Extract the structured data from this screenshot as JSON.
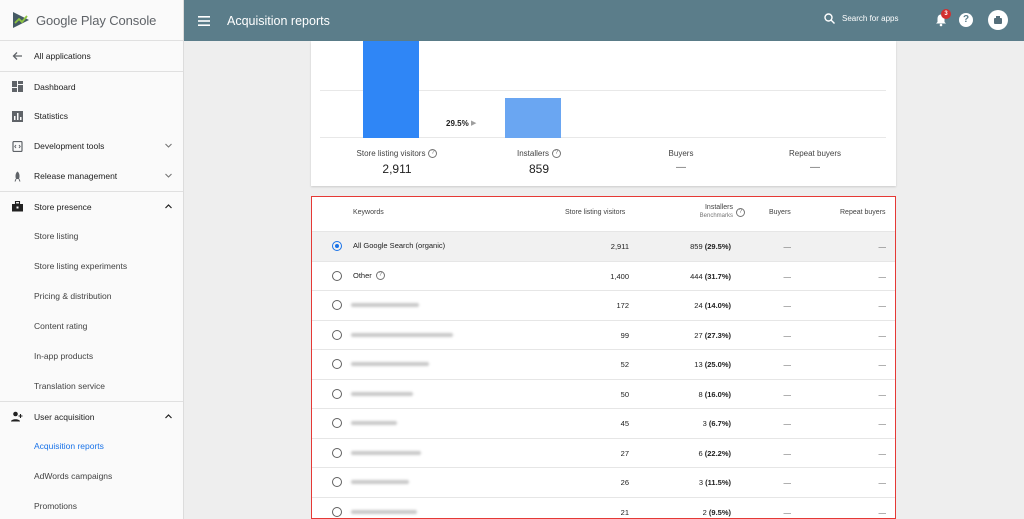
{
  "app": {
    "logo_text_a": "Google Play",
    "logo_text_b": "Console"
  },
  "topbar": {
    "title": "Acquisition reports",
    "search_label": "Search for apps",
    "notif_count": "3",
    "help": "?",
    "color": "#5b7d8a"
  },
  "sidebar": {
    "items": [
      {
        "label": "All applications",
        "icon": "arrow-left-icon"
      },
      {
        "label": "Dashboard",
        "icon": "dashboard-icon"
      },
      {
        "label": "Statistics",
        "icon": "bar-chart-icon"
      },
      {
        "label": "Development tools",
        "icon": "code-icon"
      },
      {
        "label": "Release management",
        "icon": "rocket-icon"
      },
      {
        "label": "Store presence",
        "icon": "briefcase-icon"
      },
      {
        "label": "Store listing"
      },
      {
        "label": "Store listing experiments"
      },
      {
        "label": "Pricing & distribution"
      },
      {
        "label": "Content rating"
      },
      {
        "label": "In-app products"
      },
      {
        "label": "Translation service"
      },
      {
        "label": "User acquisition",
        "icon": "person-add-icon"
      },
      {
        "label": "Acquisition reports"
      },
      {
        "label": "AdWords campaigns"
      },
      {
        "label": "Promotions"
      }
    ],
    "active_color": "#1a73e8"
  },
  "funnel": {
    "conversion": "29.5%",
    "stats": [
      {
        "label": "Store listing visitors",
        "value": "2,911"
      },
      {
        "label": "Installers",
        "value": "859"
      },
      {
        "label": "Buyers",
        "value": "—"
      },
      {
        "label": "Repeat buyers",
        "value": "—"
      }
    ],
    "bar_colors": [
      "#2f86f6",
      "#6aa6f2"
    ]
  },
  "chart_data": {
    "type": "bar",
    "categories": [
      "Store listing visitors",
      "Installers",
      "Buyers",
      "Repeat buyers"
    ],
    "values": [
      2911,
      859,
      0,
      0
    ],
    "annotations": [
      "29.5%"
    ]
  },
  "table": {
    "headers": {
      "keywords": "Keywords",
      "visitors": "Store listing visitors",
      "installers": "Installers",
      "benchmarks": "Benchmarks",
      "buyers": "Buyers",
      "repeat": "Repeat buyers"
    },
    "rows": [
      {
        "keyword": "All Google Search (organic)",
        "visitors": "2,911",
        "installs": "859",
        "pct": "(29.5%)",
        "buyers": "—",
        "repeat": "—",
        "selected": true
      },
      {
        "keyword": "Other",
        "visitors": "1,400",
        "installs": "444",
        "pct": "(31.7%)",
        "buyers": "—",
        "repeat": "—",
        "has_help": true
      },
      {
        "keyword": "",
        "visitors": "172",
        "installs": "24",
        "pct": "(14.0%)",
        "buyers": "—",
        "repeat": "—"
      },
      {
        "keyword": "",
        "visitors": "99",
        "installs": "27",
        "pct": "(27.3%)",
        "buyers": "—",
        "repeat": "—"
      },
      {
        "keyword": "",
        "visitors": "52",
        "installs": "13",
        "pct": "(25.0%)",
        "buyers": "—",
        "repeat": "—"
      },
      {
        "keyword": "",
        "visitors": "50",
        "installs": "8",
        "pct": "(16.0%)",
        "buyers": "—",
        "repeat": "—"
      },
      {
        "keyword": "",
        "visitors": "45",
        "installs": "3",
        "pct": "(6.7%)",
        "buyers": "—",
        "repeat": "—"
      },
      {
        "keyword": "",
        "visitors": "27",
        "installs": "6",
        "pct": "(22.2%)",
        "buyers": "—",
        "repeat": "—"
      },
      {
        "keyword": "",
        "visitors": "26",
        "installs": "3",
        "pct": "(11.5%)",
        "buyers": "—",
        "repeat": "—"
      },
      {
        "keyword": "",
        "visitors": "21",
        "installs": "2",
        "pct": "(9.5%)",
        "buyers": "—",
        "repeat": "—"
      }
    ],
    "highlight_color": "#e53935"
  }
}
